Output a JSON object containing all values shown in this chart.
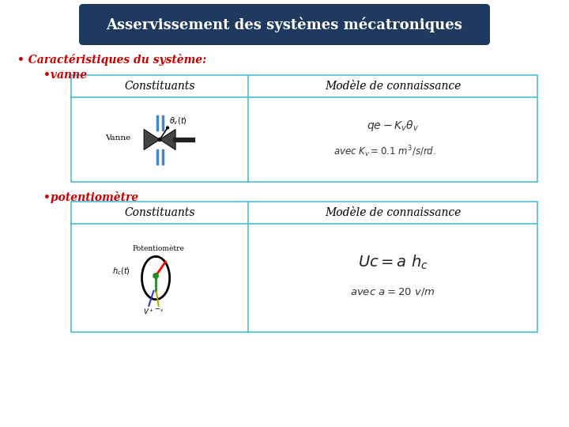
{
  "title": "Asservissement des systèmes mécatroniques",
  "title_bg": "#1e3a5f",
  "title_color": "#ffffff",
  "section1_label": "• Caractéristiques du système:",
  "sub1_label": "•vanne",
  "sub2_label": "•potentiomètre",
  "col1_header": "Constituants",
  "col2_header": "Modèle de connaissance",
  "table_border_color": "#4bbdd4",
  "red_color": "#cc0000",
  "vanne_formula1": "$qe - K_v\\theta_v$",
  "vanne_formula2": "$avec\\ K_v = 0.1\\ m^3/s/rd.$",
  "potentio_formula1": "$Uc = a\\ h_c$",
  "potentio_formula2": "$avec\\ a = 20\\ v/m$",
  "fig_width": 7.2,
  "fig_height": 5.4,
  "dpi": 100
}
